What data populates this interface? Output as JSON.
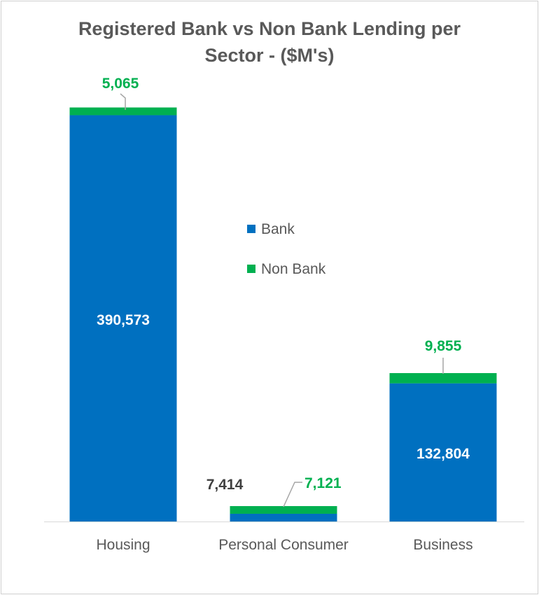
{
  "chart_data": {
    "type": "bar",
    "stacked": true,
    "title_line1": "Registered Bank vs Non Bank Lending per",
    "title_line2": "Sector - ($M's)",
    "xlabel": "",
    "ylabel": "",
    "categories": [
      "Housing",
      "Personal Consumer",
      "Business"
    ],
    "series": [
      {
        "name": "Bank",
        "color": "#0070c0",
        "values": [
          390573,
          7414,
          132804
        ],
        "label_color": [
          "#ffffff",
          "#404040",
          "#ffffff"
        ]
      },
      {
        "name": "Non Bank",
        "color": "#00b050",
        "values": [
          5065,
          7121,
          9855
        ],
        "label_color": [
          "#00b050",
          "#00b050",
          "#00b050"
        ]
      }
    ],
    "data_labels": {
      "bank": [
        "390,573",
        "7,414",
        "132,804"
      ],
      "nonbank": [
        "5,065",
        "7,121",
        "9,855"
      ]
    },
    "legend": {
      "placement": "center",
      "entries": [
        "Bank",
        "Non Bank"
      ]
    },
    "ylim": [
      0,
      395638
    ],
    "grid": false
  }
}
